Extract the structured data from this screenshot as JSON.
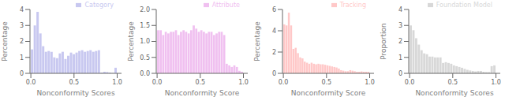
{
  "chart_data": [
    {
      "type": "bar",
      "xlabel": "Nonconformity Scores",
      "ylabel": "Percentage",
      "legend": "upper right",
      "grid": false,
      "x": [
        0.016129,
        0.048387,
        0.080645,
        0.112903,
        0.145161,
        0.177419,
        0.209677,
        0.241935,
        0.274194,
        0.306452,
        0.33871,
        0.370968,
        0.403226,
        0.435484,
        0.467742,
        0.5,
        0.532258,
        0.564516,
        0.596774,
        0.629032,
        0.66129,
        0.693548,
        0.725806,
        0.758065,
        0.790323,
        0.822581,
        0.854839,
        0.887097,
        0.919355,
        0.951613,
        0.983871
      ],
      "series": [
        {
          "name": "Category",
          "color": "#c8c8f0",
          "values": [
            1.5,
            3.0,
            3.85,
            2.5,
            1.7,
            1.35,
            1.4,
            1.35,
            1.0,
            0.95,
            1.25,
            1.35,
            0.9,
            1.1,
            1.3,
            1.2,
            1.3,
            1.4,
            1.45,
            1.35,
            1.4,
            1.45,
            1.35,
            1.4,
            1.45,
            0.05,
            0.1,
            0.08,
            0.05,
            0.02,
            0.35
          ]
        }
      ],
      "xlim": [
        -0.01,
        1.05
      ],
      "xticks": [
        {
          "value": 0.0,
          "label": "0.0"
        },
        {
          "value": 0.5,
          "label": "0.5"
        },
        {
          "value": 1.0,
          "label": "1.0"
        }
      ],
      "ylim": [
        0,
        4
      ],
      "yticks": [
        0,
        1,
        2,
        3,
        4
      ]
    },
    {
      "type": "bar",
      "xlabel": "Nonconformity Score",
      "ylabel": "Percentage",
      "legend": "upper right",
      "grid": false,
      "x": [
        0.014706,
        0.044118,
        0.073529,
        0.102941,
        0.132353,
        0.161765,
        0.191176,
        0.220588,
        0.25,
        0.279412,
        0.308824,
        0.338235,
        0.367647,
        0.397059,
        0.426471,
        0.455882,
        0.485294,
        0.514706,
        0.544118,
        0.573529,
        0.602941,
        0.632353,
        0.661765,
        0.691176,
        0.720588,
        0.75,
        0.779412,
        0.808824,
        0.838235,
        0.867647,
        0.897059,
        0.926471,
        0.955882,
        0.985294
      ],
      "series": [
        {
          "name": "Attribute",
          "color": "#f0c0f0",
          "values": [
            1.35,
            1.35,
            1.2,
            1.3,
            1.25,
            1.3,
            1.3,
            1.35,
            1.2,
            1.3,
            1.35,
            1.3,
            1.25,
            1.35,
            1.5,
            1.4,
            1.3,
            1.35,
            1.3,
            1.25,
            1.3,
            1.3,
            1.2,
            1.25,
            1.3,
            1.3,
            1.2,
            0.3,
            0.25,
            0.2,
            0.25,
            0.2,
            0.08,
            0.05
          ]
        }
      ],
      "xlim": [
        -0.01,
        1.05
      ],
      "xticks": [
        {
          "value": 0.0,
          "label": "0.0"
        },
        {
          "value": 0.5,
          "label": "0.5"
        },
        {
          "value": 1.0,
          "label": "1.0"
        }
      ],
      "ylim": [
        0,
        2
      ],
      "yticks": [
        {
          "value": 0,
          "label": "0.0"
        },
        {
          "value": 0.5,
          "label": "0.5"
        },
        {
          "value": 1.0,
          "label": "1.0"
        },
        {
          "value": 1.5,
          "label": "1.5"
        },
        {
          "value": 2.0,
          "label": "2.0"
        }
      ]
    },
    {
      "type": "bar",
      "xlabel": "Nonconformity Score",
      "ylabel": "Percentage",
      "legend": "upper right",
      "grid": false,
      "x": [
        0.013158,
        0.039474,
        0.065789,
        0.092105,
        0.118421,
        0.144737,
        0.171053,
        0.197368,
        0.223684,
        0.25,
        0.276316,
        0.302632,
        0.328947,
        0.355263,
        0.381579,
        0.407895,
        0.434211,
        0.460526,
        0.486842,
        0.513158,
        0.539474,
        0.565789,
        0.592105,
        0.618421,
        0.644737,
        0.671053,
        0.697368,
        0.723684,
        0.75,
        0.776316,
        0.802632,
        0.828947,
        0.855263,
        0.881579,
        0.907895,
        0.934211,
        0.960526,
        0.986842
      ],
      "series": [
        {
          "name": "Tracking",
          "color": "#ffc8c8",
          "values": [
            4.6,
            4.5,
            5.7,
            4.5,
            2.3,
            2.4,
            1.9,
            1.5,
            1.4,
            1.1,
            1.0,
            0.9,
            1.0,
            0.9,
            0.85,
            0.9,
            0.85,
            0.85,
            0.8,
            0.75,
            0.7,
            0.65,
            0.6,
            0.55,
            0.45,
            0.3,
            0.25,
            0.2,
            0.2,
            0.3,
            0.25,
            0.2,
            0.15,
            0.15,
            0.18,
            0.15,
            0.15,
            0.15
          ]
        }
      ],
      "xlim": [
        -0.01,
        1.05
      ],
      "xticks": [
        {
          "value": 0.0,
          "label": "0.0"
        },
        {
          "value": 0.5,
          "label": "0.5"
        },
        {
          "value": 1.0,
          "label": "1.0"
        }
      ],
      "ylim": [
        0,
        6
      ],
      "yticks": [
        0,
        2,
        4,
        6
      ]
    },
    {
      "type": "bar",
      "xlabel": "Nonconformity Scores",
      "ylabel": "Proportion",
      "legend": "upper right",
      "grid": false,
      "x": [
        0.015625,
        0.046875,
        0.078125,
        0.109375,
        0.140625,
        0.171875,
        0.203125,
        0.234375,
        0.265625,
        0.296875,
        0.328125,
        0.359375,
        0.390625,
        0.421875,
        0.453125,
        0.484375,
        0.515625,
        0.546875,
        0.578125,
        0.609375,
        0.640625,
        0.671875,
        0.703125,
        0.734375,
        0.765625,
        0.796875,
        0.828125,
        0.859375,
        0.890625,
        0.921875,
        0.953125,
        0.984375
      ],
      "series": [
        {
          "name": "Foundation Model",
          "color": "#d8d8d8",
          "values": [
            3.0,
            2.7,
            2.2,
            1.8,
            1.45,
            1.25,
            1.2,
            1.05,
            1.05,
            1.0,
            1.0,
            1.0,
            0.65,
            0.7,
            0.65,
            0.6,
            0.5,
            0.45,
            0.4,
            0.35,
            0.28,
            0.22,
            0.18,
            0.15,
            0.12,
            0.15,
            0.15,
            0.1,
            0.08,
            0.08,
            0.45,
            0.5
          ]
        }
      ],
      "xlim": [
        -0.01,
        1.05
      ],
      "xticks": [
        {
          "value": 0.0,
          "label": "0.0"
        },
        {
          "value": 0.5,
          "label": "0.5"
        },
        {
          "value": 1.0,
          "label": "1.0"
        }
      ],
      "ylim": [
        0,
        4
      ],
      "yticks": [
        0,
        1,
        2,
        3,
        4
      ]
    }
  ]
}
